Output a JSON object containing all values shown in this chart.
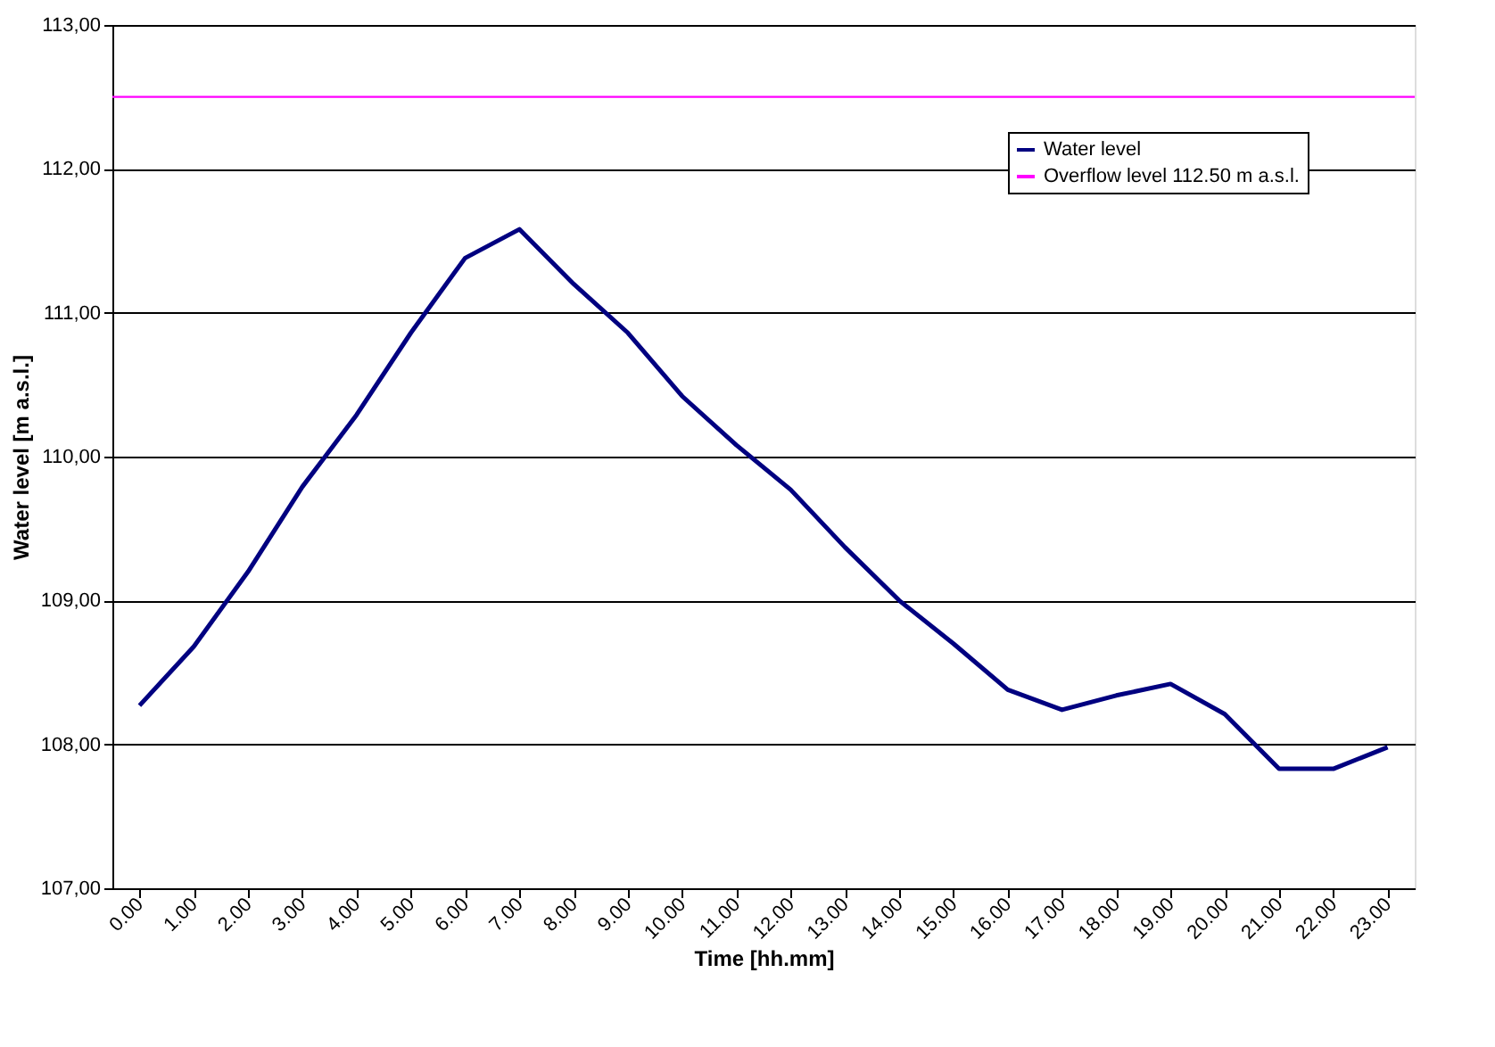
{
  "chart_data": {
    "type": "line",
    "xlabel": "Time [hh.mm]",
    "ylabel": "Water level [m a.s.l.]",
    "categories": [
      "0.00",
      "1.00",
      "2.00",
      "3.00",
      "4.00",
      "5.00",
      "6.00",
      "7.00",
      "8.00",
      "9.00",
      "10.00",
      "11.00",
      "12.00",
      "13.00",
      "14.00",
      "15.00",
      "16.00",
      "17.00",
      "18.00",
      "19.00",
      "20.00",
      "21.00",
      "22.00",
      "23.00"
    ],
    "series": [
      {
        "name": "Water level",
        "color": "#000080",
        "values": [
          108.27,
          108.68,
          109.2,
          109.79,
          110.29,
          110.86,
          111.38,
          111.58,
          111.2,
          110.86,
          110.42,
          110.08,
          109.77,
          109.37,
          109.0,
          108.7,
          108.38,
          108.24,
          108.34,
          108.42,
          108.21,
          107.83,
          107.83,
          107.98
        ]
      }
    ],
    "ref_lines": [
      {
        "axis": "y",
        "value": 112.5,
        "label": "Overflow level 112.50 m a.s.l.",
        "color": "#ff00ff"
      }
    ],
    "ylim": [
      107,
      113
    ],
    "yticks": [
      {
        "value": 107,
        "label": "107,00"
      },
      {
        "value": 108,
        "label": "108,00"
      },
      {
        "value": 109,
        "label": "109,00"
      },
      {
        "value": 110,
        "label": "110,00"
      },
      {
        "value": 111,
        "label": "111,00"
      },
      {
        "value": 112,
        "label": "112,00"
      },
      {
        "value": 113,
        "label": "113,00"
      }
    ],
    "grid": "y",
    "legend": "top right",
    "line_style": "solid",
    "marker": "none"
  }
}
